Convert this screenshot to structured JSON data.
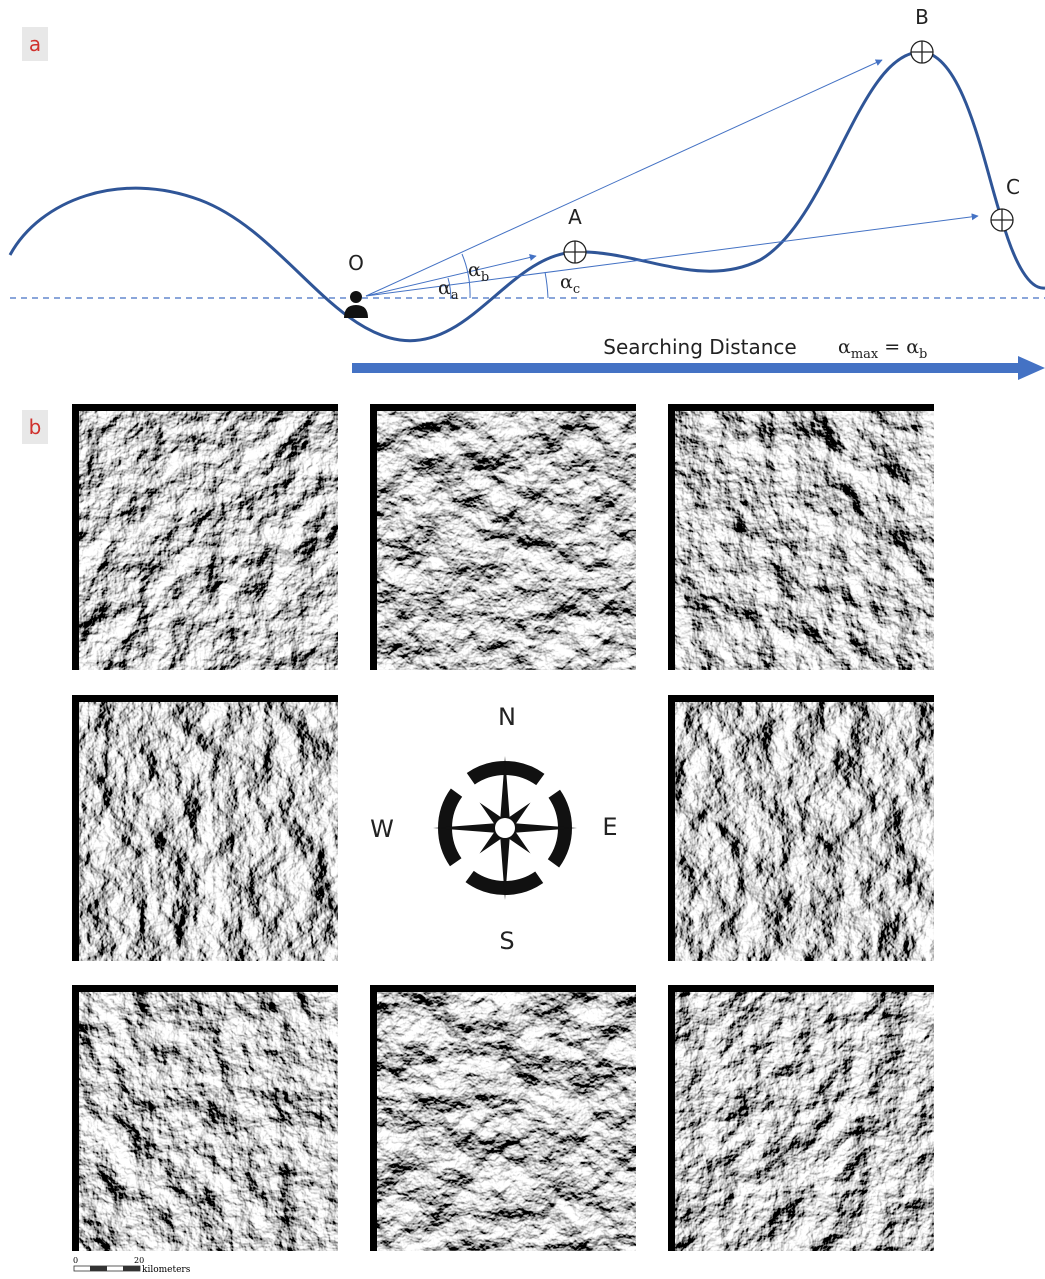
{
  "panel_a": {
    "label": "a",
    "observer": "O",
    "targets": [
      "A",
      "B",
      "C"
    ],
    "angles": [
      {
        "symbol": "α",
        "sub": "a"
      },
      {
        "symbol": "α",
        "sub": "b"
      },
      {
        "symbol": "α",
        "sub": "c"
      }
    ],
    "axis_label": "Searching Distance",
    "result": {
      "lhs": {
        "symbol": "α",
        "sub": "max"
      },
      "eq": "=",
      "rhs": {
        "symbol": "α",
        "sub": "b"
      }
    }
  },
  "panel_b": {
    "label": "b",
    "compass": {
      "north": "N",
      "west": "W",
      "east": "E",
      "south": "S"
    },
    "scale_bar": {
      "start": "0",
      "end": "20",
      "unit": "kilometers"
    }
  }
}
